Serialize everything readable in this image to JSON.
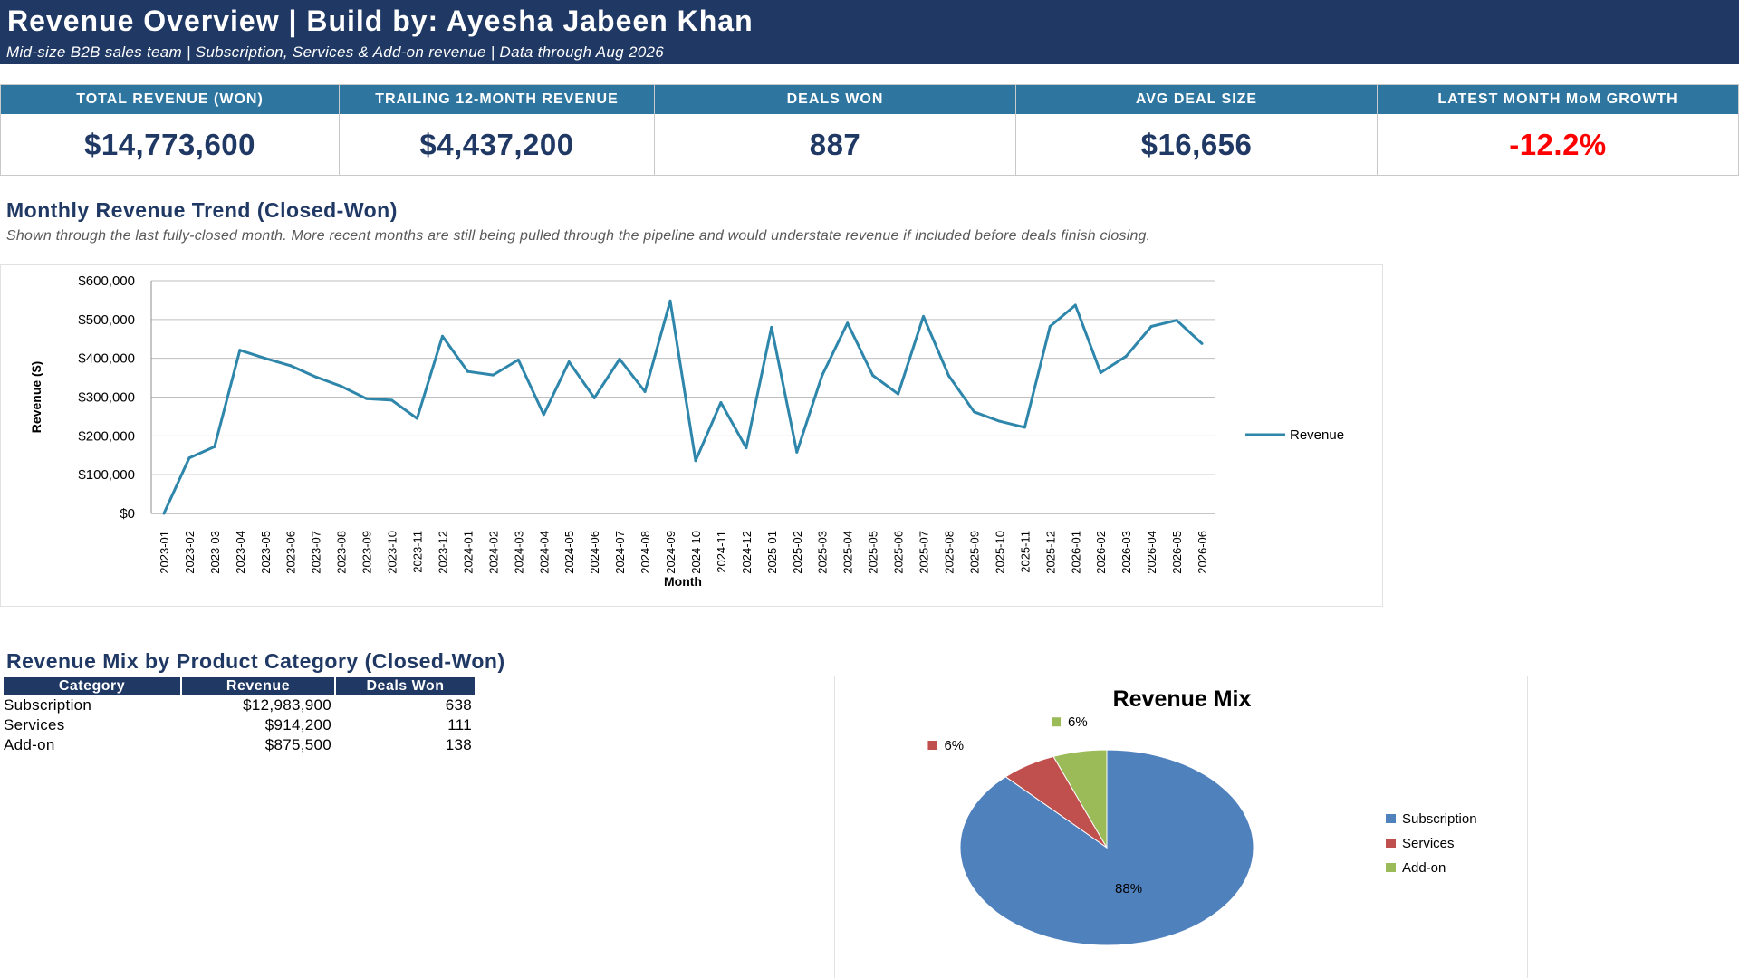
{
  "header": {
    "title": "Revenue Overview  |  Build by: Ayesha Jabeen Khan",
    "subtitle": "Mid-size B2B sales team | Subscription, Services & Add-on revenue | Data through Aug 2026",
    "background_color": "#1f3864"
  },
  "kpis": [
    {
      "label": "TOTAL REVENUE (WON)",
      "value": "$14,773,600"
    },
    {
      "label": "TRAILING 12-MONTH REVENUE",
      "value": "$4,437,200"
    },
    {
      "label": "DEALS WON",
      "value": "887"
    },
    {
      "label": "AVG DEAL SIZE",
      "value": "$16,656"
    },
    {
      "label": "LATEST MONTH MoM GROWTH",
      "value": "-12.2%",
      "value_color": "#ff0000"
    }
  ],
  "trend_section": {
    "title": "Monthly Revenue Trend (Closed-Won)",
    "note": "Shown through the last fully-closed month. More recent months are still being pulled through the pipeline and would understate revenue if included before deals finish closing."
  },
  "mix_section": {
    "title": "Revenue Mix by Product Category (Closed-Won)",
    "table": {
      "headers": [
        "Category",
        "Revenue",
        "Deals Won"
      ],
      "rows": [
        [
          "Subscription",
          "$12,983,900",
          "638"
        ],
        [
          "Services",
          "$914,200",
          "111"
        ],
        [
          "Add-on",
          "$875,500",
          "138"
        ]
      ]
    }
  },
  "chart_data": [
    {
      "type": "line",
      "title": "",
      "xlabel": "Month",
      "ylabel": "Revenue ($)",
      "ylim": [
        0,
        600000
      ],
      "y_ticks": [
        0,
        100000,
        200000,
        300000,
        400000,
        500000,
        600000
      ],
      "y_tick_labels": [
        "$0",
        "$100,000",
        "$200,000",
        "$300,000",
        "$400,000",
        "$500,000",
        "$600,000"
      ],
      "grid": true,
      "legend": "right",
      "categories": [
        "2023-01",
        "2023-02",
        "2023-03",
        "2023-04",
        "2023-05",
        "2023-06",
        "2023-07",
        "2023-08",
        "2023-09",
        "2023-10",
        "2023-11",
        "2023-12",
        "2024-01",
        "2024-02",
        "2024-03",
        "2024-04",
        "2024-05",
        "2024-06",
        "2024-07",
        "2024-08",
        "2024-09",
        "2024-10",
        "2024-11",
        "2024-12",
        "2025-01",
        "2025-02",
        "2025-03",
        "2025-04",
        "2025-05",
        "2025-06",
        "2025-07",
        "2025-08",
        "2025-09",
        "2025-10",
        "2025-11",
        "2025-12",
        "2026-01",
        "2026-02",
        "2026-03",
        "2026-04",
        "2026-05",
        "2026-06"
      ],
      "series": [
        {
          "name": "Revenue",
          "color": "#2e86ab",
          "values": [
            0,
            143000,
            172000,
            421000,
            400000,
            381000,
            352000,
            328000,
            296000,
            292000,
            245000,
            457000,
            366000,
            357000,
            396000,
            255000,
            391000,
            298000,
            398000,
            314000,
            548000,
            136000,
            286000,
            169000,
            480000,
            158000,
            356000,
            491000,
            356000,
            308000,
            508000,
            355000,
            262000,
            238000,
            222000,
            482000,
            537000,
            363000,
            405000,
            482000,
            498000,
            438000
          ]
        }
      ]
    },
    {
      "type": "pie",
      "title": "Revenue Mix",
      "legend": "right",
      "categories": [
        "Subscription",
        "Services",
        "Add-on"
      ],
      "values": [
        12983900,
        914200,
        875500
      ],
      "data_labels": [
        "88%",
        "6%",
        "6%"
      ],
      "colors": [
        "#4f81bd",
        "#c0504d",
        "#9bbb59"
      ]
    }
  ]
}
